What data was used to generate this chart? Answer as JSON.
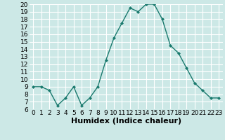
{
  "x": [
    0,
    1,
    2,
    3,
    4,
    5,
    6,
    7,
    8,
    9,
    10,
    11,
    12,
    13,
    14,
    15,
    16,
    17,
    18,
    19,
    20,
    21,
    22,
    23
  ],
  "y": [
    9.0,
    9.0,
    8.5,
    6.5,
    7.5,
    9.0,
    6.5,
    7.5,
    9.0,
    12.5,
    15.5,
    17.5,
    19.5,
    19.0,
    20.0,
    20.0,
    18.0,
    14.5,
    13.5,
    11.5,
    9.5,
    8.5,
    7.5,
    7.5
  ],
  "xlabel": "Humidex (Indice chaleur)",
  "ylim": [
    6,
    20
  ],
  "xlim": [
    -0.5,
    23.5
  ],
  "yticks": [
    6,
    7,
    8,
    9,
    10,
    11,
    12,
    13,
    14,
    15,
    16,
    17,
    18,
    19,
    20
  ],
  "xticks": [
    0,
    1,
    2,
    3,
    4,
    5,
    6,
    7,
    8,
    9,
    10,
    11,
    12,
    13,
    14,
    15,
    16,
    17,
    18,
    19,
    20,
    21,
    22,
    23
  ],
  "line_color": "#1a7a6e",
  "marker_color": "#1a7a6e",
  "bg_color": "#cce8e6",
  "grid_color": "#ffffff",
  "xlabel_fontsize": 8,
  "tick_fontsize": 6.5
}
